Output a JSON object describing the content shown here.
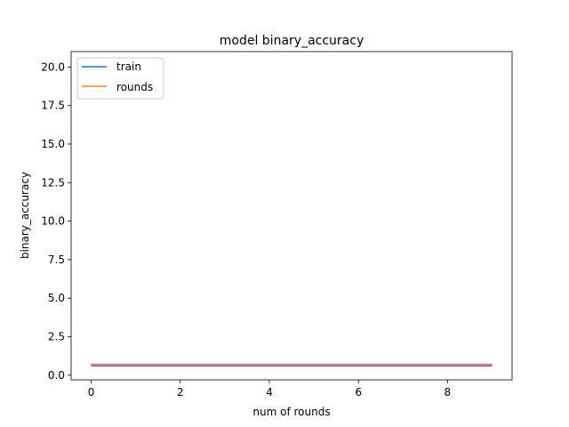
{
  "chart_data": {
    "type": "line",
    "title": "model binary_accuracy",
    "xlabel": "num of rounds",
    "ylabel": "binary_accuracy",
    "xlim": [
      -0.45,
      9.45
    ],
    "ylim": [
      -0.3,
      21.0
    ],
    "xticks": [
      0,
      2,
      4,
      6,
      8
    ],
    "xtick_labels": [
      "0",
      "2",
      "4",
      "6",
      "8"
    ],
    "yticks": [
      0.0,
      2.5,
      5.0,
      7.5,
      10.0,
      12.5,
      15.0,
      17.5,
      20.0
    ],
    "ytick_labels": [
      "0.0",
      "2.5",
      "5.0",
      "7.5",
      "10.0",
      "12.5",
      "15.0",
      "17.5",
      "20.0"
    ],
    "grid": false,
    "legend_position": "top-left",
    "x": [
      0,
      1,
      2,
      3,
      4,
      5,
      6,
      7,
      8,
      9
    ],
    "series": [
      {
        "name": "train",
        "color": "#1f77b4",
        "values": [
          0.7,
          0.7,
          0.7,
          0.7,
          0.7,
          0.7,
          0.7,
          0.7,
          0.7,
          0.7
        ]
      },
      {
        "name": "rounds",
        "color": "#ff7f0e",
        "values": [
          0.68,
          0.68,
          0.68,
          0.68,
          0.68,
          0.68,
          0.68,
          0.68,
          0.68,
          0.68
        ]
      },
      {
        "name": "",
        "color": "#2ca02c",
        "values": [
          0.66,
          0.66,
          0.66,
          0.66,
          0.66,
          0.66,
          0.66,
          0.66,
          0.66,
          0.66
        ]
      },
      {
        "name": "",
        "color": "#d62728",
        "values": [
          0.64,
          0.64,
          0.64,
          0.64,
          0.64,
          0.64,
          0.64,
          0.64,
          0.64,
          0.64
        ]
      },
      {
        "name": "",
        "color": "#9467bd",
        "values": [
          0.62,
          0.62,
          0.62,
          0.62,
          0.62,
          0.62,
          0.62,
          0.62,
          0.62,
          0.62
        ]
      },
      {
        "name": "",
        "color": "#8c564b",
        "values": [
          0.6,
          0.6,
          0.6,
          0.6,
          0.6,
          0.6,
          0.6,
          0.6,
          0.6,
          0.6
        ]
      },
      {
        "name": "",
        "color": "#e377c2",
        "values": [
          0.65,
          0.65,
          0.65,
          0.65,
          0.65,
          0.65,
          0.65,
          0.65,
          0.65,
          0.65
        ]
      }
    ]
  }
}
